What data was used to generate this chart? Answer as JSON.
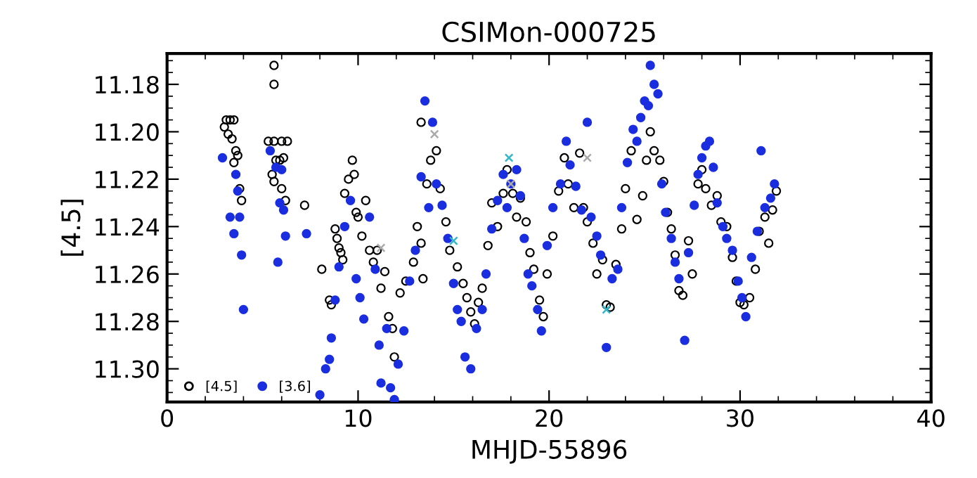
{
  "chart_data": {
    "type": "scatter",
    "title": "CSIMon-000725",
    "xlabel": "MHJD-55896",
    "ylabel": "[4.5]",
    "xlim": [
      0,
      40
    ],
    "xticks": [
      0,
      10,
      20,
      30,
      40
    ],
    "ylim": [
      11.314,
      11.167
    ],
    "yticks": [
      {
        "value": 11.18,
        "label": "11.18"
      },
      {
        "value": 11.2,
        "label": "11.20"
      },
      {
        "value": 11.22,
        "label": "11.22"
      },
      {
        "value": 11.24,
        "label": "11.24"
      },
      {
        "value": 11.26,
        "label": "11.26"
      },
      {
        "value": 11.28,
        "label": "11.28"
      },
      {
        "value": 11.3,
        "label": "11.30"
      }
    ],
    "grid": false,
    "legend": "bottom left",
    "marker": "circle",
    "series": [
      {
        "name": "[4.5]",
        "color": "#000000",
        "x": [
          3.0,
          3.1,
          3.3,
          3.5,
          3.2,
          3.4,
          3.6,
          3.5,
          3.7,
          3.8,
          3.9,
          5.6,
          5.6,
          5.3,
          5.6,
          6.0,
          6.3,
          5.5,
          5.7,
          5.9,
          6.1,
          5.6,
          6.0,
          6.2,
          7.2,
          8.1,
          8.5,
          8.6,
          8.8,
          8.9,
          9.0,
          9.1,
          9.2,
          9.3,
          9.5,
          9.7,
          9.8,
          9.9,
          10.0,
          10.2,
          10.4,
          10.6,
          10.8,
          11.0,
          11.2,
          11.4,
          11.6,
          11.8,
          11.9,
          12.2,
          12.5,
          12.9,
          13.1,
          13.3,
          13.4,
          13.6,
          13.8,
          13.3,
          14.1,
          14.3,
          14.6,
          14.8,
          15.2,
          15.5,
          15.7,
          15.9,
          16.1,
          16.3,
          16.5,
          16.8,
          17.0,
          17.3,
          17.6,
          17.8,
          18.1,
          18.3,
          18.5,
          18.8,
          19.0,
          19.2,
          19.5,
          19.7,
          19.9,
          20.2,
          20.5,
          20.8,
          21.0,
          21.3,
          21.6,
          21.8,
          22.0,
          22.3,
          22.5,
          22.8,
          23.0,
          23.2,
          23.5,
          23.8,
          24.0,
          24.3,
          24.6,
          24.9,
          25.1,
          25.3,
          25.5,
          25.8,
          26.0,
          26.2,
          26.4,
          26.6,
          26.8,
          27.0,
          27.3,
          27.5,
          27.8,
          28.0,
          28.2,
          28.5,
          28.8,
          29.0,
          29.3,
          29.6,
          29.8,
          30.0,
          30.2,
          30.5,
          30.8,
          31.0,
          31.3,
          31.5,
          31.7,
          31.9
        ],
        "values": [
          11.198,
          11.195,
          11.195,
          11.195,
          11.201,
          11.203,
          11.208,
          11.213,
          11.21,
          11.224,
          11.229,
          11.172,
          11.18,
          11.204,
          11.204,
          11.204,
          11.204,
          11.218,
          11.212,
          11.212,
          11.211,
          11.221,
          11.224,
          11.229,
          11.231,
          11.258,
          11.271,
          11.273,
          11.241,
          11.245,
          11.249,
          11.251,
          11.254,
          11.226,
          11.22,
          11.212,
          11.218,
          11.234,
          11.236,
          11.244,
          11.229,
          11.25,
          11.255,
          11.25,
          11.266,
          11.259,
          11.278,
          11.283,
          11.295,
          11.268,
          11.263,
          11.255,
          11.24,
          11.247,
          11.262,
          11.222,
          11.212,
          11.196,
          11.208,
          11.224,
          11.238,
          11.25,
          11.257,
          11.264,
          11.27,
          11.276,
          11.281,
          11.272,
          11.266,
          11.248,
          11.23,
          11.24,
          11.226,
          11.216,
          11.226,
          11.236,
          11.228,
          11.238,
          11.251,
          11.258,
          11.271,
          11.278,
          11.26,
          11.244,
          11.225,
          11.211,
          11.222,
          11.232,
          11.209,
          11.232,
          11.238,
          11.247,
          11.26,
          11.254,
          11.273,
          11.274,
          11.256,
          11.241,
          11.224,
          11.208,
          11.237,
          11.227,
          11.212,
          11.2,
          11.208,
          11.212,
          11.221,
          11.234,
          11.241,
          11.252,
          11.267,
          11.269,
          11.246,
          11.26,
          11.222,
          11.216,
          11.224,
          11.231,
          11.227,
          11.238,
          11.24,
          11.253,
          11.263,
          11.272,
          11.273,
          11.27,
          11.258,
          11.242,
          11.236,
          11.247,
          11.233,
          11.225
        ]
      },
      {
        "name": "[3.6]",
        "color": "#1a2ee0",
        "x": [
          2.9,
          3.3,
          3.5,
          3.7,
          3.8,
          3.9,
          4.0,
          3.6,
          5.4,
          5.7,
          5.9,
          6.1,
          5.8,
          6.2,
          6.0,
          7.3,
          8.0,
          8.3,
          8.5,
          8.6,
          8.8,
          9.0,
          9.3,
          9.6,
          9.9,
          10.1,
          10.3,
          10.6,
          10.9,
          11.1,
          11.2,
          11.5,
          11.7,
          11.9,
          12.1,
          12.4,
          12.7,
          13.0,
          13.3,
          13.5,
          13.7,
          13.9,
          14.1,
          14.4,
          14.7,
          15.0,
          15.2,
          15.4,
          15.6,
          15.9,
          16.2,
          16.5,
          16.7,
          17.0,
          17.3,
          17.6,
          17.8,
          18.0,
          18.3,
          18.5,
          18.7,
          18.9,
          19.1,
          19.4,
          19.6,
          19.9,
          20.2,
          20.6,
          20.9,
          21.1,
          21.4,
          21.7,
          22.0,
          22.2,
          22.5,
          22.7,
          23.0,
          23.3,
          23.6,
          23.8,
          24.1,
          24.4,
          24.6,
          24.8,
          25.0,
          25.2,
          25.3,
          25.5,
          25.7,
          25.9,
          26.1,
          26.4,
          26.6,
          26.8,
          27.1,
          27.3,
          27.6,
          27.8,
          28.0,
          28.2,
          28.4,
          28.6,
          28.8,
          29.1,
          29.3,
          29.6,
          29.9,
          30.1,
          30.3,
          30.6,
          30.9,
          31.1,
          31.3,
          31.6,
          31.8
        ],
        "values": [
          11.211,
          11.236,
          11.243,
          11.225,
          11.236,
          11.252,
          11.275,
          11.218,
          11.208,
          11.215,
          11.23,
          11.233,
          11.255,
          11.244,
          11.216,
          11.243,
          11.311,
          11.3,
          11.296,
          11.287,
          11.271,
          11.257,
          11.24,
          11.229,
          11.262,
          11.27,
          11.279,
          11.236,
          11.258,
          11.29,
          11.306,
          11.283,
          11.308,
          11.313,
          11.298,
          11.284,
          11.263,
          11.25,
          11.219,
          11.187,
          11.232,
          11.196,
          11.222,
          11.231,
          11.245,
          11.264,
          11.275,
          11.28,
          11.295,
          11.3,
          11.283,
          11.275,
          11.26,
          11.241,
          11.229,
          11.218,
          11.232,
          11.222,
          11.216,
          11.227,
          11.245,
          11.26,
          11.265,
          11.275,
          11.284,
          11.248,
          11.232,
          11.222,
          11.204,
          11.214,
          11.223,
          11.233,
          11.196,
          11.236,
          11.244,
          11.252,
          11.291,
          11.262,
          11.258,
          11.232,
          11.213,
          11.199,
          11.204,
          11.194,
          11.187,
          11.189,
          11.172,
          11.18,
          11.184,
          11.222,
          11.234,
          11.245,
          11.255,
          11.262,
          11.288,
          11.251,
          11.231,
          11.218,
          11.211,
          11.206,
          11.204,
          11.215,
          11.23,
          11.24,
          11.245,
          11.25,
          11.263,
          11.27,
          11.278,
          11.253,
          11.242,
          11.208,
          11.232,
          11.228,
          11.222
        ]
      },
      {
        "marker": "cross",
        "colors": [
          "#aaaaaa",
          "#aaaaaa",
          "#30b8c8",
          "#30b8c8",
          "#aaaaaa",
          "#aaaaaa",
          "#30b8c8"
        ],
        "x": [
          11.2,
          14.0,
          15.0,
          17.9,
          18.0,
          22.0,
          23.0
        ],
        "values": [
          11.249,
          11.201,
          11.246,
          11.211,
          11.222,
          11.211,
          11.275
        ]
      }
    ]
  }
}
